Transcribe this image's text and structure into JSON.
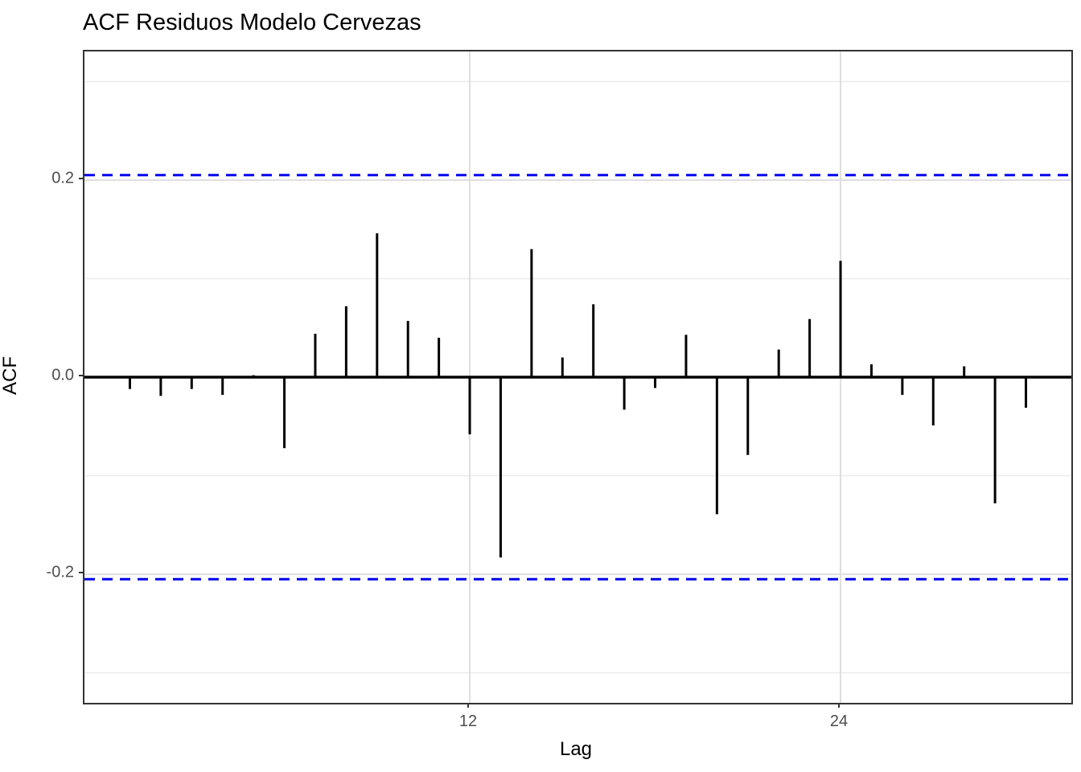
{
  "title": "ACF Residuos Modelo Cervezas",
  "axes": {
    "x_label": "Lag",
    "y_label": "ACF",
    "x_tick_labels": [
      "12",
      "24"
    ],
    "y_tick_labels": [
      "0.2",
      "0.0",
      "-0.2"
    ]
  },
  "chart_data": {
    "type": "bar",
    "subtype": "acf-stem-plot",
    "title": "ACF Residuos Modelo Cervezas",
    "xlabel": "Lag",
    "ylabel": "ACF",
    "x": [
      1,
      2,
      3,
      4,
      5,
      6,
      7,
      8,
      9,
      10,
      11,
      12,
      13,
      14,
      15,
      16,
      17,
      18,
      19,
      20,
      21,
      22,
      23,
      24,
      25,
      26,
      27,
      28,
      29,
      30
    ],
    "values": [
      -0.012,
      -0.019,
      -0.012,
      -0.018,
      0.002,
      -0.072,
      0.044,
      0.072,
      0.146,
      0.057,
      0.04,
      -0.058,
      -0.183,
      0.13,
      0.02,
      0.074,
      -0.033,
      -0.011,
      0.043,
      -0.139,
      -0.079,
      0.028,
      0.059,
      0.118,
      0.013,
      -0.018,
      -0.049,
      0.011,
      -0.128,
      -0.031
    ],
    "confidence_bounds": [
      0.205,
      -0.205
    ],
    "xlim": [
      -0.47,
      31.47
    ],
    "ylim": [
      -0.3305,
      0.3305
    ],
    "x_tick_values": [
      12,
      24
    ],
    "y_tick_values": [
      0.2,
      0.0,
      -0.2
    ],
    "grid": {
      "x_major": [
        12,
        24
      ],
      "y_major": [
        -0.2,
        0.2
      ],
      "y_minor": [
        -0.3,
        -0.1,
        0.1,
        0.3
      ]
    },
    "legend": "none",
    "colors": {
      "bar": "#000000",
      "zero_line": "#000000",
      "confidence_line": "#0000EE",
      "grid_major": "#DEDEDE",
      "grid_minor": "#ECECEC",
      "panel_border": "#333333",
      "tick_text": "#4d4d4d",
      "title_text": "#000000"
    }
  }
}
